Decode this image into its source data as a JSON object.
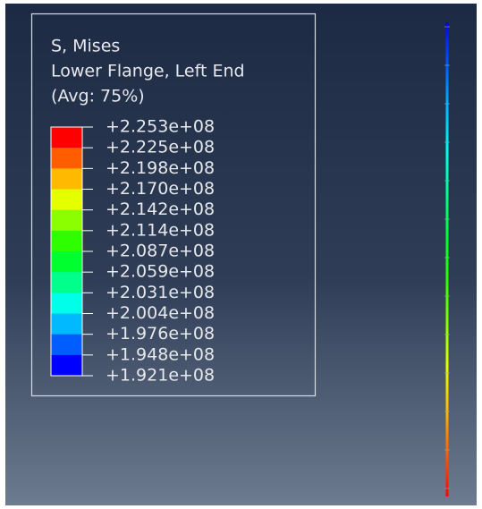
{
  "legend": {
    "title_lines": [
      "S, Mises",
      "Lower Flange, Left End",
      "(Avg: 75%)"
    ],
    "labels": [
      "+2.253e+08",
      "+2.225e+08",
      "+2.198e+08",
      "+2.170e+08",
      "+2.142e+08",
      "+2.114e+08",
      "+2.087e+08",
      "+2.059e+08",
      "+2.031e+08",
      "+2.004e+08",
      "+1.976e+08",
      "+1.948e+08",
      "+1.921e+08"
    ],
    "colors": [
      "#ff0000",
      "#ff5d00",
      "#ffb900",
      "#e6ff00",
      "#8bff00",
      "#2eff00",
      "#00ff2e",
      "#00ff8b",
      "#00ffe8",
      "#00b9ff",
      "#005dff",
      "#0000ff"
    ]
  }
}
